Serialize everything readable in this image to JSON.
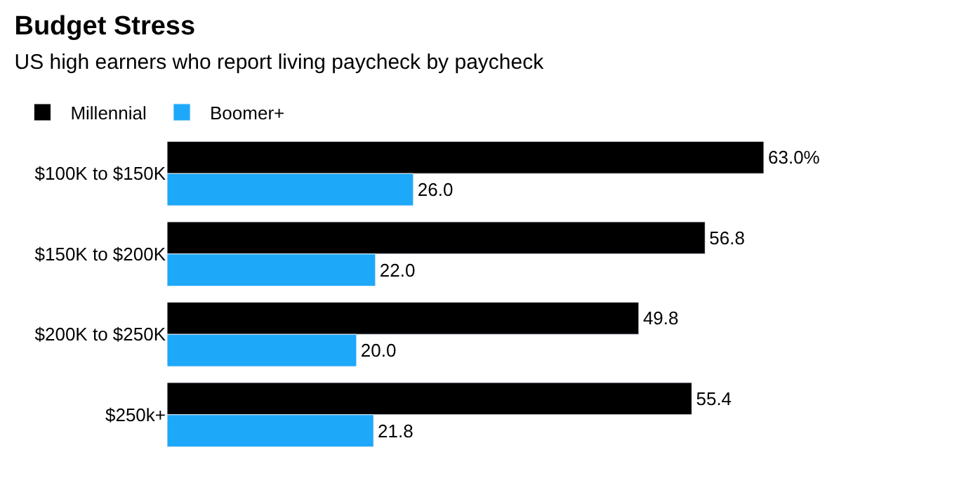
{
  "chart_data": {
    "type": "bar",
    "orientation": "horizontal",
    "title": "Budget Stress",
    "subtitle": "US high earners who report living paycheck by paycheck",
    "categories": [
      "$100K to $150K",
      "$150K to $200K",
      "$200K to $250K",
      "$250k+"
    ],
    "series": [
      {
        "name": "Millennial",
        "color": "#000000",
        "values": [
          63.0,
          56.8,
          49.8,
          55.4
        ],
        "value_labels": [
          "63.0%",
          "56.8",
          "49.8",
          "55.4"
        ]
      },
      {
        "name": "Boomer+",
        "color": "#1da8f9",
        "values": [
          26.0,
          22.0,
          20.0,
          21.8
        ],
        "value_labels": [
          "26.0",
          "22.0",
          "20.0",
          "21.8"
        ]
      }
    ],
    "legend": "top left",
    "tick_labels": "y"
  }
}
